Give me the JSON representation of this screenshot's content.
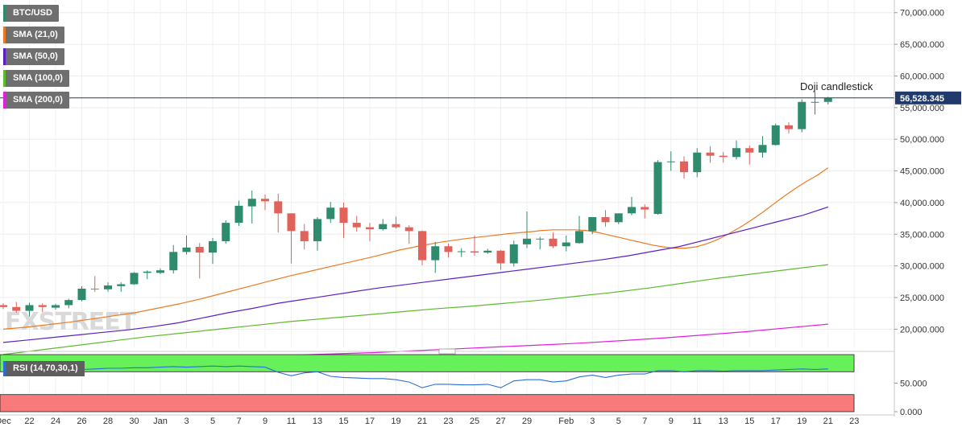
{
  "watermark": "FXSTREET",
  "colors": {
    "up": "#2e8b6e",
    "down": "#e0625a",
    "sma21": "#ec7a22",
    "sma50": "#5a1fc8",
    "sma100": "#5dbb2c",
    "sma200": "#e11ee0",
    "price_line": "#1f3a6b",
    "rsi_line": "#2a6fd6",
    "rsi_overbought": "#66f05a",
    "rsi_oversold": "#f87a7a"
  },
  "legend": [
    {
      "label": "BTC/USD",
      "color": "#2e8b6e"
    },
    {
      "label": "SMA (21,0)",
      "color": "#ec7a22"
    },
    {
      "label": "SMA (50,0)",
      "color": "#5a1fc8"
    },
    {
      "label": "SMA (100,0)",
      "color": "#5dbb2c"
    },
    {
      "label": "SMA (200,0)",
      "color": "#e11ee0"
    }
  ],
  "rsi_label": "RSI (14,70,30,1)",
  "chart_data": {
    "type": "candlestick",
    "annotation": "Doji candlestick",
    "last_price": 56528.345,
    "last_price_label": "56,528.345",
    "ylim": [
      17000,
      72000
    ],
    "y_ticks": [
      20000,
      25000,
      30000,
      35000,
      40000,
      45000,
      50000,
      55000,
      60000,
      65000,
      70000
    ],
    "y_tick_labels": [
      "20,000.000",
      "25,000.000",
      "30,000.000",
      "35,000.000",
      "40,000.000",
      "45,000.000",
      "50,000.000",
      "55,000.000",
      "60,000.000",
      "65,000.000",
      "70,000.000"
    ],
    "x_ticks": [
      {
        "i": 0,
        "label": "Dec"
      },
      {
        "i": 2,
        "label": "22"
      },
      {
        "i": 4,
        "label": "24"
      },
      {
        "i": 6,
        "label": "26"
      },
      {
        "i": 8,
        "label": "28"
      },
      {
        "i": 10,
        "label": "30"
      },
      {
        "i": 12,
        "label": "Jan"
      },
      {
        "i": 14,
        "label": "3"
      },
      {
        "i": 16,
        "label": "5"
      },
      {
        "i": 18,
        "label": "7"
      },
      {
        "i": 20,
        "label": "9"
      },
      {
        "i": 22,
        "label": "11"
      },
      {
        "i": 24,
        "label": "13"
      },
      {
        "i": 26,
        "label": "15"
      },
      {
        "i": 28,
        "label": "17"
      },
      {
        "i": 30,
        "label": "19"
      },
      {
        "i": 32,
        "label": "21"
      },
      {
        "i": 34,
        "label": "23"
      },
      {
        "i": 36,
        "label": "25"
      },
      {
        "i": 38,
        "label": "27"
      },
      {
        "i": 40,
        "label": "29"
      },
      {
        "i": 43,
        "label": "Feb"
      },
      {
        "i": 45,
        "label": "3"
      },
      {
        "i": 47,
        "label": "5"
      },
      {
        "i": 49,
        "label": "7"
      },
      {
        "i": 51,
        "label": "9"
      },
      {
        "i": 53,
        "label": "11"
      },
      {
        "i": 55,
        "label": "13"
      },
      {
        "i": 57,
        "label": "15"
      },
      {
        "i": 59,
        "label": "17"
      },
      {
        "i": 61,
        "label": "19"
      },
      {
        "i": 63,
        "label": "21"
      },
      {
        "i": 65,
        "label": "23"
      }
    ],
    "candles": [
      {
        "o": 23800,
        "h": 24100,
        "l": 23200,
        "c": 23500
      },
      {
        "o": 23500,
        "h": 24300,
        "l": 22600,
        "c": 22900
      },
      {
        "o": 22900,
        "h": 24200,
        "l": 22000,
        "c": 23800
      },
      {
        "o": 23800,
        "h": 24100,
        "l": 22700,
        "c": 23500
      },
      {
        "o": 23400,
        "h": 24000,
        "l": 23100,
        "c": 23800
      },
      {
        "o": 23800,
        "h": 24800,
        "l": 23300,
        "c": 24600
      },
      {
        "o": 24600,
        "h": 26800,
        "l": 24400,
        "c": 26400
      },
      {
        "o": 26400,
        "h": 28400,
        "l": 25900,
        "c": 26300
      },
      {
        "o": 26300,
        "h": 27400,
        "l": 25900,
        "c": 26900
      },
      {
        "o": 26800,
        "h": 27400,
        "l": 25900,
        "c": 27100
      },
      {
        "o": 27100,
        "h": 29000,
        "l": 27000,
        "c": 28900
      },
      {
        "o": 28900,
        "h": 29300,
        "l": 27900,
        "c": 29100
      },
      {
        "o": 28900,
        "h": 29600,
        "l": 28700,
        "c": 29300
      },
      {
        "o": 29300,
        "h": 33300,
        "l": 28800,
        "c": 32200
      },
      {
        "o": 32200,
        "h": 34800,
        "l": 31800,
        "c": 32900
      },
      {
        "o": 33000,
        "h": 33600,
        "l": 28000,
        "c": 32100
      },
      {
        "o": 32100,
        "h": 34400,
        "l": 30300,
        "c": 33900
      },
      {
        "o": 33900,
        "h": 37200,
        "l": 33500,
        "c": 36800
      },
      {
        "o": 36800,
        "h": 40300,
        "l": 36300,
        "c": 39500
      },
      {
        "o": 39400,
        "h": 41900,
        "l": 36700,
        "c": 40600
      },
      {
        "o": 40600,
        "h": 41300,
        "l": 38800,
        "c": 40200
      },
      {
        "o": 40200,
        "h": 41400,
        "l": 35300,
        "c": 38300
      },
      {
        "o": 38300,
        "h": 38300,
        "l": 30400,
        "c": 35500
      },
      {
        "o": 35500,
        "h": 36600,
        "l": 32600,
        "c": 33900
      },
      {
        "o": 33900,
        "h": 37700,
        "l": 32400,
        "c": 37400
      },
      {
        "o": 37400,
        "h": 40100,
        "l": 36800,
        "c": 39200
      },
      {
        "o": 39200,
        "h": 40000,
        "l": 34400,
        "c": 36800
      },
      {
        "o": 36800,
        "h": 37900,
        "l": 35400,
        "c": 36100
      },
      {
        "o": 36100,
        "h": 36800,
        "l": 33900,
        "c": 35800
      },
      {
        "o": 35800,
        "h": 37400,
        "l": 35600,
        "c": 36600
      },
      {
        "o": 36600,
        "h": 37800,
        "l": 35900,
        "c": 36100
      },
      {
        "o": 36100,
        "h": 36400,
        "l": 33500,
        "c": 35500
      },
      {
        "o": 35500,
        "h": 35600,
        "l": 30100,
        "c": 30900
      },
      {
        "o": 30900,
        "h": 33800,
        "l": 28900,
        "c": 33100
      },
      {
        "o": 33100,
        "h": 33500,
        "l": 31300,
        "c": 32200
      },
      {
        "o": 32200,
        "h": 32800,
        "l": 31400,
        "c": 32300
      },
      {
        "o": 32300,
        "h": 34800,
        "l": 31600,
        "c": 32100
      },
      {
        "o": 32100,
        "h": 32700,
        "l": 31900,
        "c": 32400
      },
      {
        "o": 32400,
        "h": 32500,
        "l": 29400,
        "c": 30400
      },
      {
        "o": 30400,
        "h": 34000,
        "l": 29900,
        "c": 33400
      },
      {
        "o": 33400,
        "h": 38600,
        "l": 32800,
        "c": 34300
      },
      {
        "o": 34300,
        "h": 34600,
        "l": 32600,
        "c": 34300
      },
      {
        "o": 34300,
        "h": 35300,
        "l": 32800,
        "c": 33100
      },
      {
        "o": 33100,
        "h": 34800,
        "l": 32300,
        "c": 33700
      },
      {
        "o": 33600,
        "h": 37900,
        "l": 33500,
        "c": 35500
      },
      {
        "o": 35500,
        "h": 37700,
        "l": 35000,
        "c": 37700
      },
      {
        "o": 37700,
        "h": 38800,
        "l": 36200,
        "c": 36900
      },
      {
        "o": 36900,
        "h": 38200,
        "l": 36600,
        "c": 38300
      },
      {
        "o": 38300,
        "h": 40900,
        "l": 38000,
        "c": 39300
      },
      {
        "o": 39300,
        "h": 39700,
        "l": 37500,
        "c": 38900
      },
      {
        "o": 38200,
        "h": 46700,
        "l": 38100,
        "c": 46400
      },
      {
        "o": 46400,
        "h": 48100,
        "l": 45000,
        "c": 46500
      },
      {
        "o": 46500,
        "h": 47300,
        "l": 43800,
        "c": 44800
      },
      {
        "o": 44800,
        "h": 48600,
        "l": 44000,
        "c": 47900
      },
      {
        "o": 47900,
        "h": 48900,
        "l": 46300,
        "c": 47400
      },
      {
        "o": 47400,
        "h": 48000,
        "l": 46300,
        "c": 47200
      },
      {
        "o": 47200,
        "h": 49800,
        "l": 46800,
        "c": 48600
      },
      {
        "o": 48600,
        "h": 49000,
        "l": 46000,
        "c": 47900
      },
      {
        "o": 47900,
        "h": 50500,
        "l": 47100,
        "c": 49100
      },
      {
        "o": 49100,
        "h": 52500,
        "l": 49000,
        "c": 52200
      },
      {
        "o": 52200,
        "h": 52700,
        "l": 50900,
        "c": 51600
      },
      {
        "o": 51600,
        "h": 56300,
        "l": 51100,
        "c": 55900
      },
      {
        "o": 55900,
        "h": 57500,
        "l": 53900,
        "c": 55900
      },
      {
        "o": 55900,
        "h": 56700,
        "l": 55500,
        "c": 56500
      }
    ],
    "sma21": [
      20000,
      20300,
      20700,
      21100,
      21600,
      22100,
      22600,
      23300,
      24000,
      24800,
      25700,
      26600,
      27500,
      28400,
      29200,
      30000,
      30800,
      31600,
      32500,
      33200,
      33800,
      34300,
      34700,
      35100,
      35400,
      35600,
      35700,
      35700,
      35700,
      35600,
      35300,
      34900,
      34500,
      34100,
      33700,
      33300,
      33000,
      32800,
      32800,
      33000,
      33500,
      34200,
      35100,
      36100,
      37200,
      38400,
      39700,
      41000,
      42200,
      43300,
      44300,
      45500
    ],
    "sma21_x": [
      0,
      2,
      4,
      6,
      8,
      10,
      12,
      14,
      16,
      18,
      20,
      22,
      24,
      26,
      28,
      30,
      32,
      34,
      36,
      38,
      40,
      42,
      44,
      46,
      48,
      49,
      50,
      51,
      52,
      53,
      54,
      55,
      56,
      57,
      58,
      59,
      60,
      61,
      62,
      63,
      64,
      65,
      66,
      67,
      68,
      69,
      70,
      71,
      72,
      73,
      74,
      75
    ],
    "sma50": [
      17900,
      18300,
      18700,
      19100,
      19500,
      19900,
      20400,
      21000,
      21800,
      22600,
      23300,
      24100,
      24700,
      25300,
      25900,
      26500,
      27000,
      27500,
      28000,
      28500,
      29000,
      29500,
      30000,
      30500,
      31000,
      31600,
      32300,
      33000,
      34000,
      35000,
      36000,
      37000,
      38000,
      39300
    ],
    "sma100": [
      16000,
      16700,
      17400,
      18100,
      18800,
      19400,
      20000,
      20600,
      21200,
      21700,
      22200,
      22700,
      23200,
      23600,
      24100,
      24600,
      25200,
      25800,
      26500,
      27300,
      28100,
      28800,
      29500,
      30200
    ],
    "sma200": [
      14500,
      14700,
      14900,
      15100,
      15300,
      15500,
      15700,
      15900,
      16100,
      16300,
      16600,
      16900,
      17200,
      17500,
      17800,
      18200,
      18600,
      19100,
      19600,
      20200,
      20800
    ],
    "rsi": {
      "ylim": [
        0,
        100
      ],
      "overbought": 70,
      "oversold": 30,
      "tick_labels": [
        "50.000",
        "0.000"
      ],
      "values": [
        72,
        71,
        72,
        73,
        72,
        73,
        74,
        75,
        76,
        76,
        77,
        77,
        78,
        79,
        78,
        79,
        80,
        79,
        80,
        79,
        78,
        69,
        63,
        68,
        70,
        62,
        60,
        59,
        58,
        58,
        56,
        52,
        42,
        48,
        48,
        47,
        47,
        48,
        42,
        54,
        56,
        56,
        52,
        54,
        61,
        64,
        60,
        64,
        66,
        66,
        72,
        72,
        70,
        72,
        72,
        71,
        72,
        72,
        72,
        73,
        74,
        75,
        74,
        75
      ]
    }
  }
}
